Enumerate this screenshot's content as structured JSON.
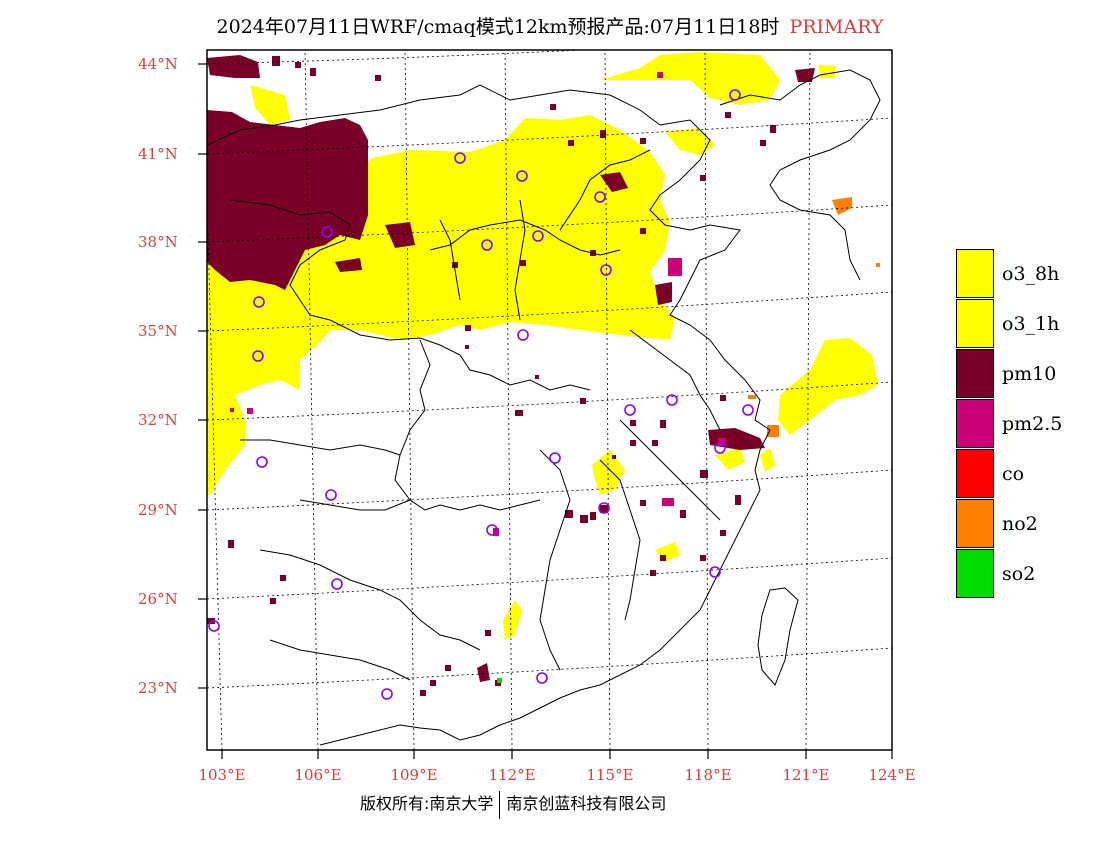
{
  "title": {
    "main": "2024年07月11日WRF/cmaq模式12km预报产品:07月11日18时",
    "tag": "PRIMARY"
  },
  "lat_labels": [
    "44°N",
    "41°N",
    "38°N",
    "35°N",
    "32°N",
    "29°N",
    "26°N",
    "23°N"
  ],
  "lon_labels": [
    "103°E",
    "106°E",
    "109°E",
    "112°E",
    "115°E",
    "118°E",
    "121°E",
    "124°E"
  ],
  "legend": [
    {
      "label": "o3_8h",
      "color": "#ffff00"
    },
    {
      "label": "o3_1h",
      "color": "#ffff00"
    },
    {
      "label": "pm10",
      "color": "#7b0028"
    },
    {
      "label": "pm2.5",
      "color": "#cc0077"
    },
    {
      "label": "co",
      "color": "#ff0000"
    },
    {
      "label": "no2",
      "color": "#ff8000"
    },
    {
      "label": "so2",
      "color": "#00dd00"
    }
  ],
  "footer": {
    "left": "版权所有:南京大学",
    "right": "南京创蓝科技有限公司"
  }
}
